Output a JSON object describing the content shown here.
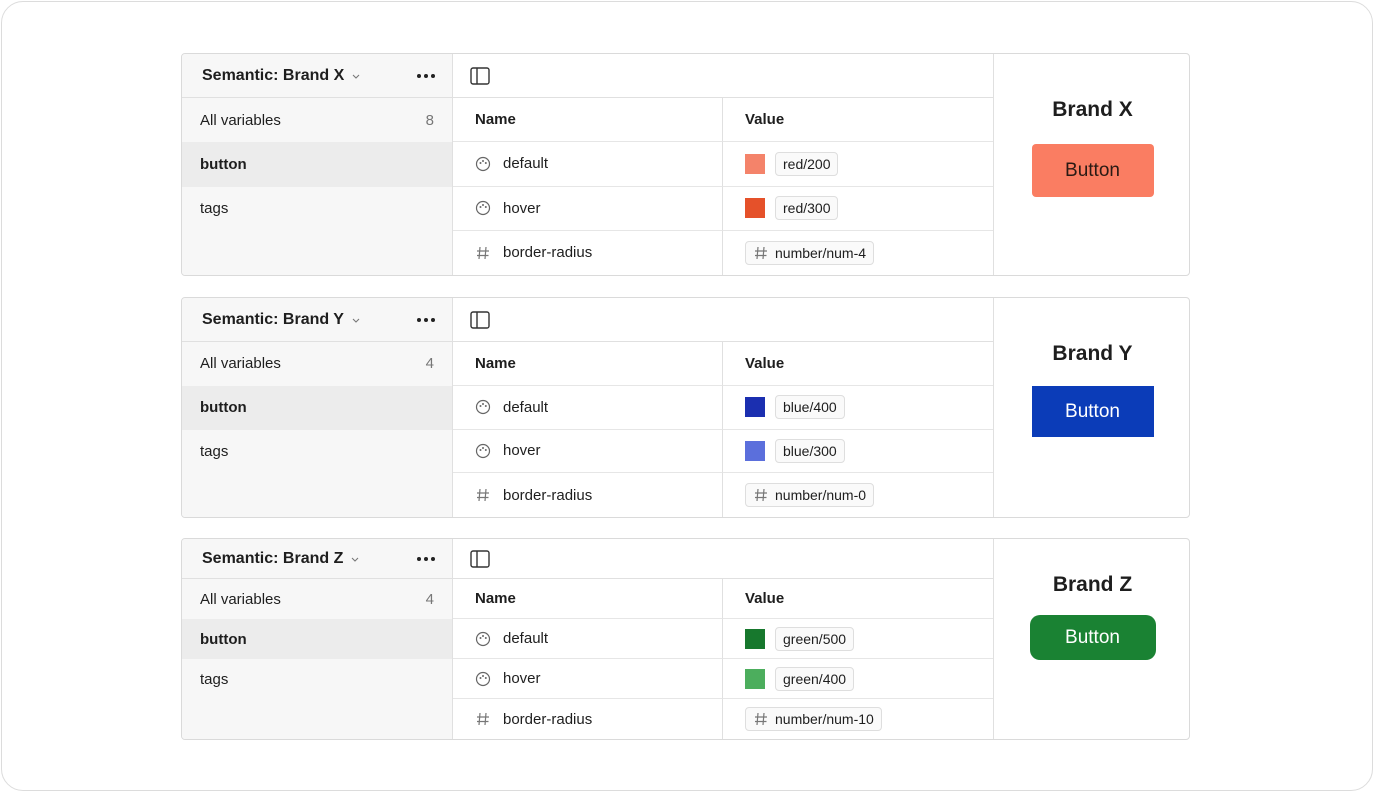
{
  "panels": [
    {
      "title": "Semantic: Brand X",
      "sidebar": {
        "all_label": "All variables",
        "count": "8",
        "groups": [
          "button",
          "tags"
        ]
      },
      "columns": [
        "Name",
        "Value"
      ],
      "rows": [
        {
          "name": "default",
          "swatch": "#f4836a",
          "value": "red/200"
        },
        {
          "name": "hover",
          "swatch": "#e5512a",
          "value": "red/300"
        },
        {
          "name": "border-radius",
          "value": "number/num-4"
        }
      ],
      "preview": {
        "brand": "Brand X",
        "button": "Button",
        "button_color": "#fa7d62",
        "button_text_color": "#2a1a14"
      }
    },
    {
      "title": "Semantic: Brand Y",
      "sidebar": {
        "all_label": "All variables",
        "count": "4",
        "groups": [
          "button",
          "tags"
        ]
      },
      "columns": [
        "Name",
        "Value"
      ],
      "rows": [
        {
          "name": "default",
          "swatch": "#1b2fb0",
          "value": "blue/400"
        },
        {
          "name": "hover",
          "swatch": "#5b6fdc",
          "value": "blue/300"
        },
        {
          "name": "border-radius",
          "value": "number/num-0"
        }
      ],
      "preview": {
        "brand": "Brand Y",
        "button": "Button",
        "button_color": "#0b3cb8",
        "button_text_color": "#ffffff"
      }
    },
    {
      "title": "Semantic: Brand Z",
      "sidebar": {
        "all_label": "All variables",
        "count": "4",
        "groups": [
          "button",
          "tags"
        ]
      },
      "columns": [
        "Name",
        "Value"
      ],
      "rows": [
        {
          "name": "default",
          "swatch": "#17782d",
          "value": "green/500"
        },
        {
          "name": "hover",
          "swatch": "#4cae5d",
          "value": "green/400"
        },
        {
          "name": "border-radius",
          "value": "number/num-10"
        }
      ],
      "preview": {
        "brand": "Brand Z",
        "button": "Button",
        "button_color": "#1a8233",
        "button_text_color": "#ffffff"
      }
    }
  ]
}
